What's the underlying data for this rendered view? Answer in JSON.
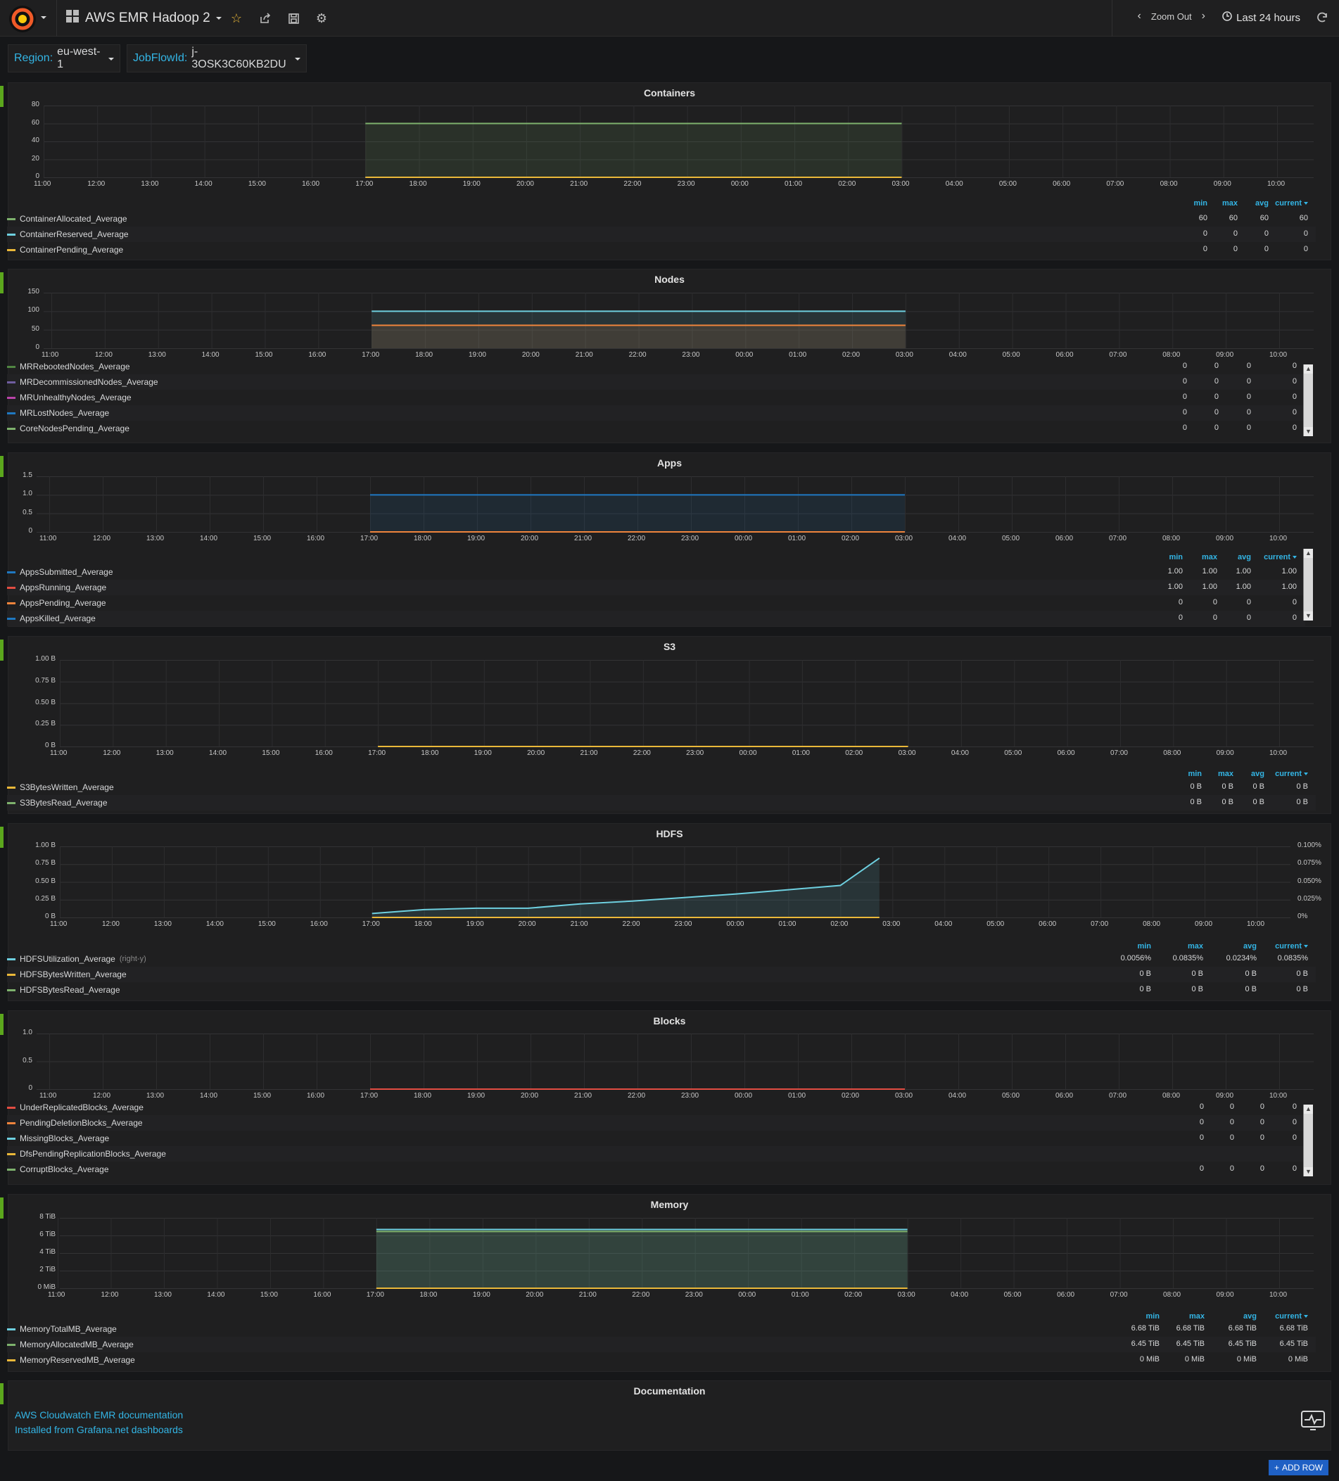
{
  "navbar": {
    "dashboard_title": "AWS EMR Hadoop 2",
    "zoom_out_label": "Zoom Out",
    "time_range": "Last 24 hours"
  },
  "variables": [
    {
      "label": "Region:",
      "value": "eu-west-1"
    },
    {
      "label": "JobFlowId:",
      "value": "j-3OSK3C60KB2DU"
    }
  ],
  "legend_headers": [
    "min",
    "max",
    "avg",
    "current"
  ],
  "x_ticks": [
    "11:00",
    "12:00",
    "13:00",
    "14:00",
    "15:00",
    "16:00",
    "17:00",
    "18:00",
    "19:00",
    "20:00",
    "21:00",
    "22:00",
    "23:00",
    "00:00",
    "01:00",
    "02:00",
    "03:00",
    "04:00",
    "05:00",
    "06:00",
    "07:00",
    "08:00",
    "09:00",
    "10:00"
  ],
  "colors": {
    "green": "#7eb26d",
    "cyan": "#6ed0e0",
    "yellow": "#eab839",
    "orange": "#ef843c",
    "red": "#e24d42",
    "blue": "#1f78c1",
    "purple": "#705da0",
    "pink": "#ba43a9",
    "light_green": "#508642",
    "accent": "#33b5e5"
  },
  "panels": [
    {
      "title": "Containers",
      "y_ticks": [
        "80",
        "60",
        "40",
        "20",
        "0"
      ],
      "legend": [
        {
          "name": "ContainerAllocated_Average",
          "color": "#7eb26d",
          "values": [
            "60",
            "60",
            "60",
            "60"
          ]
        },
        {
          "name": "ContainerReserved_Average",
          "color": "#6ed0e0",
          "values": [
            "0",
            "0",
            "0",
            "0"
          ]
        },
        {
          "name": "ContainerPending_Average",
          "color": "#eab839",
          "values": [
            "0",
            "0",
            "0",
            "0"
          ]
        }
      ]
    },
    {
      "title": "Nodes",
      "y_ticks": [
        "150",
        "100",
        "50",
        "0"
      ],
      "legend": [
        {
          "name": "MRRebootedNodes_Average",
          "color": "#508642",
          "values": [
            "0",
            "0",
            "0",
            "0"
          ]
        },
        {
          "name": "MRDecommissionedNodes_Average",
          "color": "#705da0",
          "values": [
            "0",
            "0",
            "0",
            "0"
          ]
        },
        {
          "name": "MRUnhealthyNodes_Average",
          "color": "#ba43a9",
          "values": [
            "0",
            "0",
            "0",
            "0"
          ]
        },
        {
          "name": "MRLostNodes_Average",
          "color": "#1f78c1",
          "values": [
            "0",
            "0",
            "0",
            "0"
          ]
        },
        {
          "name": "CoreNodesPending_Average",
          "color": "#7eb26d",
          "values": [
            "0",
            "0",
            "0",
            "0"
          ]
        }
      ]
    },
    {
      "title": "Apps",
      "y_ticks": [
        "1.5",
        "1.0",
        "0.5",
        "0"
      ],
      "legend": [
        {
          "name": "AppsSubmitted_Average",
          "color": "#1f78c1",
          "values": [
            "1.00",
            "1.00",
            "1.00",
            "1.00"
          ]
        },
        {
          "name": "AppsRunning_Average",
          "color": "#e24d42",
          "values": [
            "1.00",
            "1.00",
            "1.00",
            "1.00"
          ]
        },
        {
          "name": "AppsPending_Average",
          "color": "#ef843c",
          "values": [
            "0",
            "0",
            "0",
            "0"
          ]
        },
        {
          "name": "AppsKilled_Average",
          "color": "#1f78c1",
          "values": [
            "0",
            "0",
            "0",
            "0"
          ]
        }
      ]
    },
    {
      "title": "S3",
      "y_ticks": [
        "1.00 B",
        "0.75 B",
        "0.50 B",
        "0.25 B",
        "0 B"
      ],
      "legend": [
        {
          "name": "S3BytesWritten_Average",
          "color": "#eab839",
          "values": [
            "0 B",
            "0 B",
            "0 B",
            "0 B"
          ]
        },
        {
          "name": "S3BytesRead_Average",
          "color": "#7eb26d",
          "values": [
            "0 B",
            "0 B",
            "0 B",
            "0 B"
          ]
        }
      ]
    },
    {
      "title": "HDFS",
      "y_ticks": [
        "1.00 B",
        "0.75 B",
        "0.50 B",
        "0.25 B",
        "0 B"
      ],
      "y2_ticks": [
        "0.100%",
        "0.075%",
        "0.050%",
        "0.025%",
        "0%"
      ],
      "legend": [
        {
          "name": "HDFSUtilization_Average",
          "suffix": "(right-y)",
          "color": "#6ed0e0",
          "values": [
            "0.0056%",
            "0.0835%",
            "0.0234%",
            "0.0835%"
          ]
        },
        {
          "name": "HDFSBytesWritten_Average",
          "color": "#eab839",
          "values": [
            "0 B",
            "0 B",
            "0 B",
            "0 B"
          ]
        },
        {
          "name": "HDFSBytesRead_Average",
          "color": "#7eb26d",
          "values": [
            "0 B",
            "0 B",
            "0 B",
            "0 B"
          ]
        }
      ]
    },
    {
      "title": "Blocks",
      "y_ticks": [
        "1.0",
        "0.5",
        "0"
      ],
      "legend": [
        {
          "name": "UnderReplicatedBlocks_Average",
          "color": "#e24d42",
          "values": [
            "0",
            "0",
            "0",
            "0"
          ]
        },
        {
          "name": "PendingDeletionBlocks_Average",
          "color": "#ef843c",
          "values": [
            "0",
            "0",
            "0",
            "0"
          ]
        },
        {
          "name": "MissingBlocks_Average",
          "color": "#6ed0e0",
          "values": [
            "0",
            "0",
            "0",
            "0"
          ]
        },
        {
          "name": "DfsPendingReplicationBlocks_Average",
          "color": "#eab839",
          "values": [
            "",
            "",
            "",
            ""
          ]
        },
        {
          "name": "CorruptBlocks_Average",
          "color": "#7eb26d",
          "values": [
            "0",
            "0",
            "0",
            "0"
          ]
        }
      ]
    },
    {
      "title": "Memory",
      "y_ticks": [
        "8 TiB",
        "6 TiB",
        "4 TiB",
        "2 TiB",
        "0 MiB"
      ],
      "legend": [
        {
          "name": "MemoryTotalMB_Average",
          "color": "#6ed0e0",
          "values": [
            "6.68 TiB",
            "6.68 TiB",
            "6.68 TiB",
            "6.68 TiB"
          ]
        },
        {
          "name": "MemoryAllocatedMB_Average",
          "color": "#7eb26d",
          "values": [
            "6.45 TiB",
            "6.45 TiB",
            "6.45 TiB",
            "6.45 TiB"
          ]
        },
        {
          "name": "MemoryReservedMB_Average",
          "color": "#eab839",
          "values": [
            "0 MiB",
            "0 MiB",
            "0 MiB",
            "0 MiB"
          ]
        }
      ]
    }
  ],
  "documentation": {
    "title": "Documentation",
    "links": [
      "AWS Cloudwatch EMR documentation",
      "Installed from Grafana.net dashboards"
    ]
  },
  "add_row_label": "ADD ROW",
  "chart_data": [
    {
      "type": "line",
      "title": "Containers",
      "ylim": [
        0,
        80
      ],
      "x_range": [
        "11:00",
        "10:00"
      ],
      "series": [
        {
          "name": "ContainerAllocated_Average",
          "x": [
            "17:00",
            "03:00"
          ],
          "y": [
            60,
            60
          ]
        },
        {
          "name": "ContainerReserved_Average",
          "x": [
            "17:00",
            "03:00"
          ],
          "y": [
            0,
            0
          ]
        },
        {
          "name": "ContainerPending_Average",
          "x": [
            "17:00",
            "03:00"
          ],
          "y": [
            0,
            0
          ]
        }
      ]
    },
    {
      "type": "line",
      "title": "Nodes",
      "ylim": [
        0,
        150
      ],
      "series": [
        {
          "name": "(upper series)",
          "x": [
            "17:00",
            "03:00"
          ],
          "y": [
            100,
            100
          ]
        },
        {
          "name": "(lower series)",
          "x": [
            "17:00",
            "03:00"
          ],
          "y": [
            62,
            62
          ]
        }
      ]
    },
    {
      "type": "line",
      "title": "Apps",
      "ylim": [
        0,
        1.5
      ],
      "series": [
        {
          "name": "AppsSubmitted_Average",
          "x": [
            "17:00",
            "03:00"
          ],
          "y": [
            1,
            1
          ]
        },
        {
          "name": "AppsPending_Average",
          "x": [
            "17:00",
            "03:00"
          ],
          "y": [
            0,
            0
          ]
        }
      ]
    },
    {
      "type": "line",
      "title": "S3",
      "ylim": [
        0,
        1
      ],
      "series": [
        {
          "name": "S3BytesWritten_Average",
          "x": [
            "17:00",
            "03:00"
          ],
          "y": [
            0,
            0
          ]
        }
      ]
    },
    {
      "type": "line",
      "title": "HDFS",
      "ylim": [
        0,
        1
      ],
      "y2lim": [
        0,
        0.1
      ],
      "series": [
        {
          "name": "HDFSUtilization_Average",
          "x": [
            "17:00",
            "18:00",
            "19:00",
            "20:00",
            "21:00",
            "22:00",
            "23:00",
            "00:00",
            "01:00",
            "02:00",
            "02:45"
          ],
          "y": [
            0.0056,
            0.011,
            0.013,
            0.013,
            0.019,
            0.023,
            0.028,
            0.033,
            0.039,
            0.045,
            0.0835
          ]
        },
        {
          "name": "HDFSBytesWritten_Average",
          "x": [
            "17:00",
            "02:45"
          ],
          "y": [
            0,
            0
          ]
        }
      ]
    },
    {
      "type": "line",
      "title": "Blocks",
      "ylim": [
        0,
        1
      ],
      "series": [
        {
          "name": "UnderReplicatedBlocks_Average",
          "x": [
            "17:00",
            "03:00"
          ],
          "y": [
            0,
            0
          ]
        }
      ]
    },
    {
      "type": "line",
      "title": "Memory",
      "ylim": [
        0,
        8
      ],
      "series": [
        {
          "name": "MemoryTotalMB_Average",
          "x": [
            "17:00",
            "03:00"
          ],
          "y": [
            6.68,
            6.68
          ]
        },
        {
          "name": "MemoryAllocatedMB_Average",
          "x": [
            "17:00",
            "03:00"
          ],
          "y": [
            6.45,
            6.45
          ]
        },
        {
          "name": "MemoryReservedMB_Average",
          "x": [
            "17:00",
            "03:00"
          ],
          "y": [
            0,
            0
          ]
        }
      ]
    }
  ]
}
